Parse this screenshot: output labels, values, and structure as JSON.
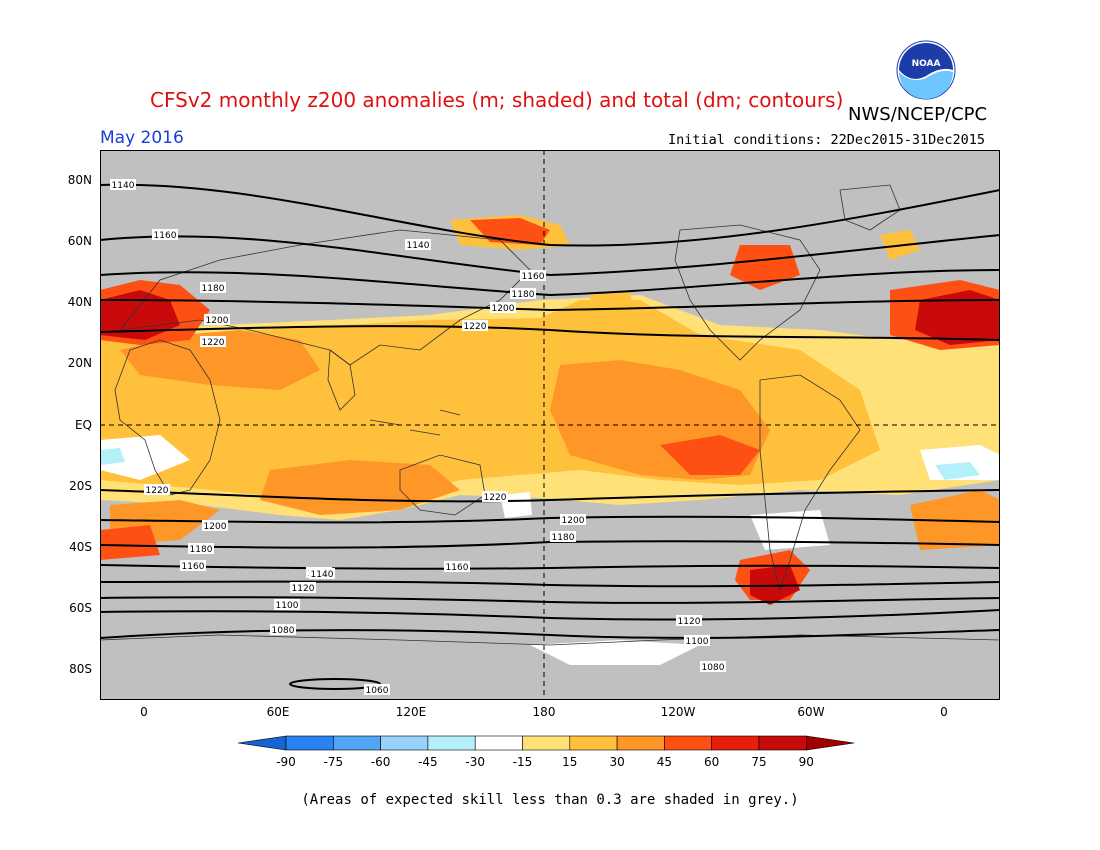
{
  "title": "CFSv2 monthly z200 anomalies (m; shaded) and total (dm; contours)",
  "subtitle": "May 2016",
  "agency": "NWS/NCEP/CPC",
  "logo_text": "NOAA",
  "initial_conditions": "Initial conditions: 22Dec2015-31Dec2015",
  "lat_labels": [
    "80N",
    "60N",
    "40N",
    "20N",
    "EQ",
    "20S",
    "40S",
    "60S",
    "80S"
  ],
  "lon_labels": [
    "0",
    "60E",
    "120E",
    "180",
    "120W",
    "60W",
    "0"
  ],
  "contour_labels": [
    "1140",
    "1160",
    "1180",
    "1200",
    "1220",
    "1220",
    "1200",
    "1180",
    "1160",
    "1140",
    "1120",
    "1100",
    "1080",
    "1060",
    "1140",
    "1160",
    "1180",
    "1200",
    "1220",
    "1220",
    "1200",
    "1180",
    "1160",
    "1140",
    "1120",
    "1100",
    "1080"
  ],
  "colorbar": {
    "ticks": [
      "-90",
      "-75",
      "-60",
      "-45",
      "-30",
      "-15",
      "15",
      "30",
      "45",
      "60",
      "75",
      "90"
    ],
    "colors": [
      "#1464d2",
      "#2882f0",
      "#50a5f5",
      "#96d2fa",
      "#b4f0fa",
      "#ffffff",
      "#ffe178",
      "#ffc03c",
      "#ff9628",
      "#ff5014",
      "#e61e0a",
      "#c80a0a",
      "#a00000"
    ]
  },
  "note": "(Areas of expected skill less than 0.3 are shaded in grey.)",
  "colors": {
    "grey": "#c0c0c0",
    "title": "#e01010",
    "subtitle": "#1a3fd6"
  }
}
